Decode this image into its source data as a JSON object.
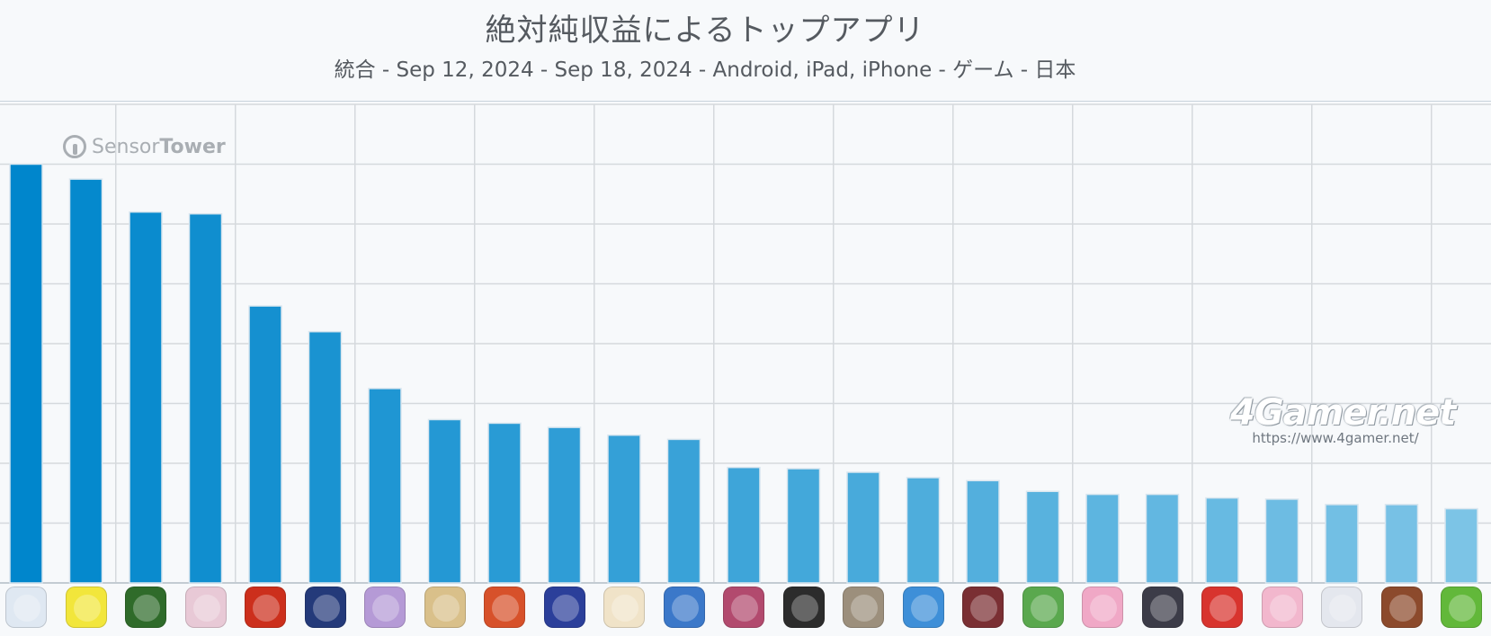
{
  "title": "絶対純収益によるトップアプリ",
  "subtitle": "統合 - Sep 12, 2024 - Sep 18, 2024 - Android, iPad, iPhone - ゲーム - 日本",
  "watermark_sensor_tower": {
    "light": "Sensor",
    "bold": "Tower"
  },
  "watermark_4gamer": {
    "logo": "4Gamer.net",
    "url": "https://www.4gamer.net/"
  },
  "chart_data": {
    "type": "bar",
    "title": "絶対純収益によるトップアプリ",
    "subtitle": "統合 - Sep 12, 2024 - Sep 18, 2024 - Android, iPad, iPhone - ゲーム - 日本",
    "xlabel": "",
    "ylabel": "",
    "grid": true,
    "ylim": [
      0,
      8
    ],
    "values": [
      7.0,
      6.75,
      6.2,
      6.17,
      4.63,
      4.2,
      3.25,
      2.73,
      2.67,
      2.6,
      2.47,
      2.4,
      1.93,
      1.91,
      1.85,
      1.76,
      1.71,
      1.53,
      1.48,
      1.48,
      1.42,
      1.4,
      1.31,
      1.31,
      1.24
    ],
    "icon_colors": [
      "#dfe8f2",
      "#f2e63b",
      "#2f6b2a",
      "#e8c9d6",
      "#cc2f1c",
      "#243a7a",
      "#b59ad6",
      "#d9c08a",
      "#d7512a",
      "#2b3f9a",
      "#f0e3c8",
      "#3b78c9",
      "#b24a6e",
      "#2c2c2c",
      "#9c8f7c",
      "#3e8fd8",
      "#7a2f33",
      "#5aa84e",
      "#f0a8c6",
      "#3c3c48",
      "#d8342e",
      "#f2b7cd",
      "#e4e7ee",
      "#8c4a2c",
      "#62b83a"
    ],
    "bar_color_start": "#0086cc",
    "bar_color_end": "#7cc4e6"
  }
}
